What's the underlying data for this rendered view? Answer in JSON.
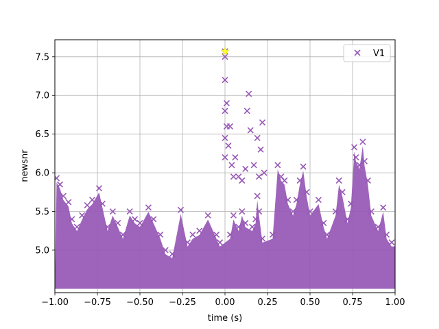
{
  "chart_data": {
    "type": "scatter",
    "title": "",
    "xlabel": "time (s)",
    "ylabel": "newsnr",
    "xlim": [
      -1.0,
      1.0
    ],
    "ylim": [
      4.45,
      7.72
    ],
    "xticks": [
      -1.0,
      -0.75,
      -0.5,
      -0.25,
      0.0,
      0.25,
      0.5,
      0.75,
      1.0
    ],
    "xtick_labels": [
      "−1.00",
      "−0.75",
      "−0.50",
      "−0.25",
      "0.00",
      "0.25",
      "0.50",
      "0.75",
      "1.00"
    ],
    "yticks": [
      5.0,
      5.5,
      6.0,
      6.5,
      7.0,
      7.5
    ],
    "ytick_labels": [
      "5.0",
      "5.5",
      "6.0",
      "6.5",
      "7.0",
      "7.5"
    ],
    "grid": true,
    "legend_position": "upper right",
    "marker": "x",
    "series": [
      {
        "name": "V1",
        "color": "#9657b5",
        "points": [
          [
            -0.99,
            5.93
          ],
          [
            -0.97,
            5.85
          ],
          [
            -0.95,
            5.7
          ],
          [
            -0.92,
            5.62
          ],
          [
            -0.9,
            5.4
          ],
          [
            -0.87,
            5.3
          ],
          [
            -0.84,
            5.45
          ],
          [
            -0.81,
            5.58
          ],
          [
            -0.78,
            5.65
          ],
          [
            -0.74,
            5.8
          ],
          [
            -0.72,
            5.6
          ],
          [
            -0.69,
            5.3
          ],
          [
            -0.66,
            5.5
          ],
          [
            -0.63,
            5.35
          ],
          [
            -0.6,
            5.2
          ],
          [
            -0.56,
            5.5
          ],
          [
            -0.53,
            5.4
          ],
          [
            -0.5,
            5.35
          ],
          [
            -0.45,
            5.55
          ],
          [
            -0.42,
            5.4
          ],
          [
            -0.38,
            5.2
          ],
          [
            -0.35,
            5.0
          ],
          [
            -0.31,
            4.95
          ],
          [
            -0.26,
            5.52
          ],
          [
            -0.22,
            5.1
          ],
          [
            -0.19,
            5.2
          ],
          [
            -0.15,
            5.25
          ],
          [
            -0.1,
            5.45
          ],
          [
            -0.05,
            5.2
          ],
          [
            -0.03,
            5.1
          ],
          [
            0.0,
            7.57
          ],
          [
            0.0,
            7.5
          ],
          [
            0.0,
            7.2
          ],
          [
            0.0,
            6.8
          ],
          [
            0.0,
            6.45
          ],
          [
            0.0,
            6.2
          ],
          [
            0.01,
            6.9
          ],
          [
            0.01,
            6.6
          ],
          [
            0.02,
            6.35
          ],
          [
            0.03,
            6.6
          ],
          [
            0.04,
            6.1
          ],
          [
            0.05,
            5.95
          ],
          [
            0.06,
            6.2
          ],
          [
            0.08,
            5.95
          ],
          [
            0.1,
            5.9
          ],
          [
            0.12,
            6.05
          ],
          [
            0.13,
            6.8
          ],
          [
            0.14,
            7.02
          ],
          [
            0.15,
            6.55
          ],
          [
            0.17,
            6.1
          ],
          [
            0.19,
            6.45
          ],
          [
            0.2,
            5.95
          ],
          [
            0.21,
            6.3
          ],
          [
            0.22,
            6.65
          ],
          [
            0.23,
            6.0
          ],
          [
            0.19,
            5.7
          ],
          [
            0.2,
            5.5
          ],
          [
            0.18,
            5.4
          ],
          [
            0.16,
            5.3
          ],
          [
            0.22,
            5.15
          ],
          [
            0.03,
            5.2
          ],
          [
            0.05,
            5.45
          ],
          [
            0.08,
            5.3
          ],
          [
            0.1,
            5.5
          ],
          [
            0.12,
            5.35
          ],
          [
            0.28,
            5.2
          ],
          [
            0.31,
            6.1
          ],
          [
            0.33,
            5.95
          ],
          [
            0.35,
            5.9
          ],
          [
            0.37,
            5.65
          ],
          [
            0.4,
            5.5
          ],
          [
            0.42,
            5.65
          ],
          [
            0.44,
            5.9
          ],
          [
            0.46,
            6.08
          ],
          [
            0.48,
            5.75
          ],
          [
            0.5,
            5.5
          ],
          [
            0.55,
            5.65
          ],
          [
            0.58,
            5.35
          ],
          [
            0.6,
            5.2
          ],
          [
            0.65,
            5.5
          ],
          [
            0.67,
            5.9
          ],
          [
            0.69,
            5.75
          ],
          [
            0.72,
            5.4
          ],
          [
            0.74,
            5.6
          ],
          [
            0.76,
            6.33
          ],
          [
            0.77,
            6.2
          ],
          [
            0.79,
            6.1
          ],
          [
            0.81,
            6.4
          ],
          [
            0.82,
            6.15
          ],
          [
            0.84,
            5.9
          ],
          [
            0.86,
            5.5
          ],
          [
            0.9,
            5.3
          ],
          [
            0.93,
            5.55
          ],
          [
            0.95,
            5.2
          ],
          [
            0.98,
            5.1
          ]
        ]
      }
    ],
    "highlight": {
      "x": 0.0,
      "y": 7.57,
      "color": "#ffff33",
      "marker": "star"
    }
  }
}
